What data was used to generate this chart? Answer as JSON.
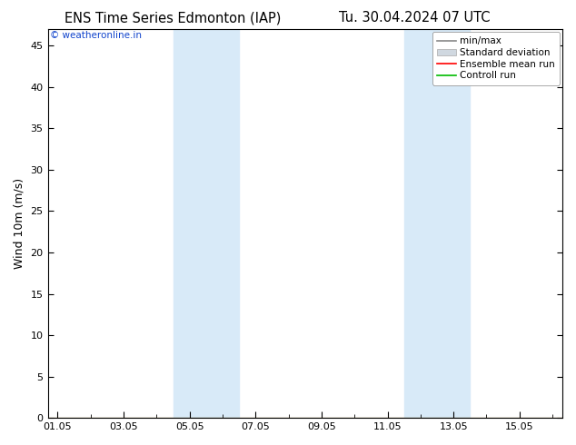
{
  "title_left": "ENS Time Series Edmonton (IAP)",
  "title_right": "Tu. 30.04.2024 07 UTC",
  "ylabel": "Wind 10m (m/s)",
  "watermark": "© weatheronline.in",
  "ylim": [
    0,
    47
  ],
  "yticks": [
    0,
    5,
    10,
    15,
    20,
    25,
    30,
    35,
    40,
    45
  ],
  "shaded_bands": [
    {
      "x_start": 3.5,
      "x_end": 5.5,
      "color": "#d8eaf8"
    },
    {
      "x_start": 10.5,
      "x_end": 12.5,
      "color": "#d8eaf8"
    }
  ],
  "xtick_labels": [
    "01.05",
    "03.05",
    "05.05",
    "07.05",
    "09.05",
    "11.05",
    "13.05",
    "15.05"
  ],
  "xtick_positions": [
    0,
    2,
    4,
    6,
    8,
    10,
    12,
    14
  ],
  "xlim": [
    -0.3,
    15.3
  ],
  "legend_labels": [
    "min/max",
    "Standard deviation",
    "Ensemble mean run",
    "Controll run"
  ],
  "legend_line_colors": [
    "#888888",
    "#cccccc",
    "#ff0000",
    "#00bb00"
  ],
  "background_color": "#ffffff",
  "plot_bg_color": "#ffffff",
  "title_fontsize": 10.5,
  "watermark_color": "#1144cc",
  "tick_color": "#000000",
  "spine_color": "#000000"
}
